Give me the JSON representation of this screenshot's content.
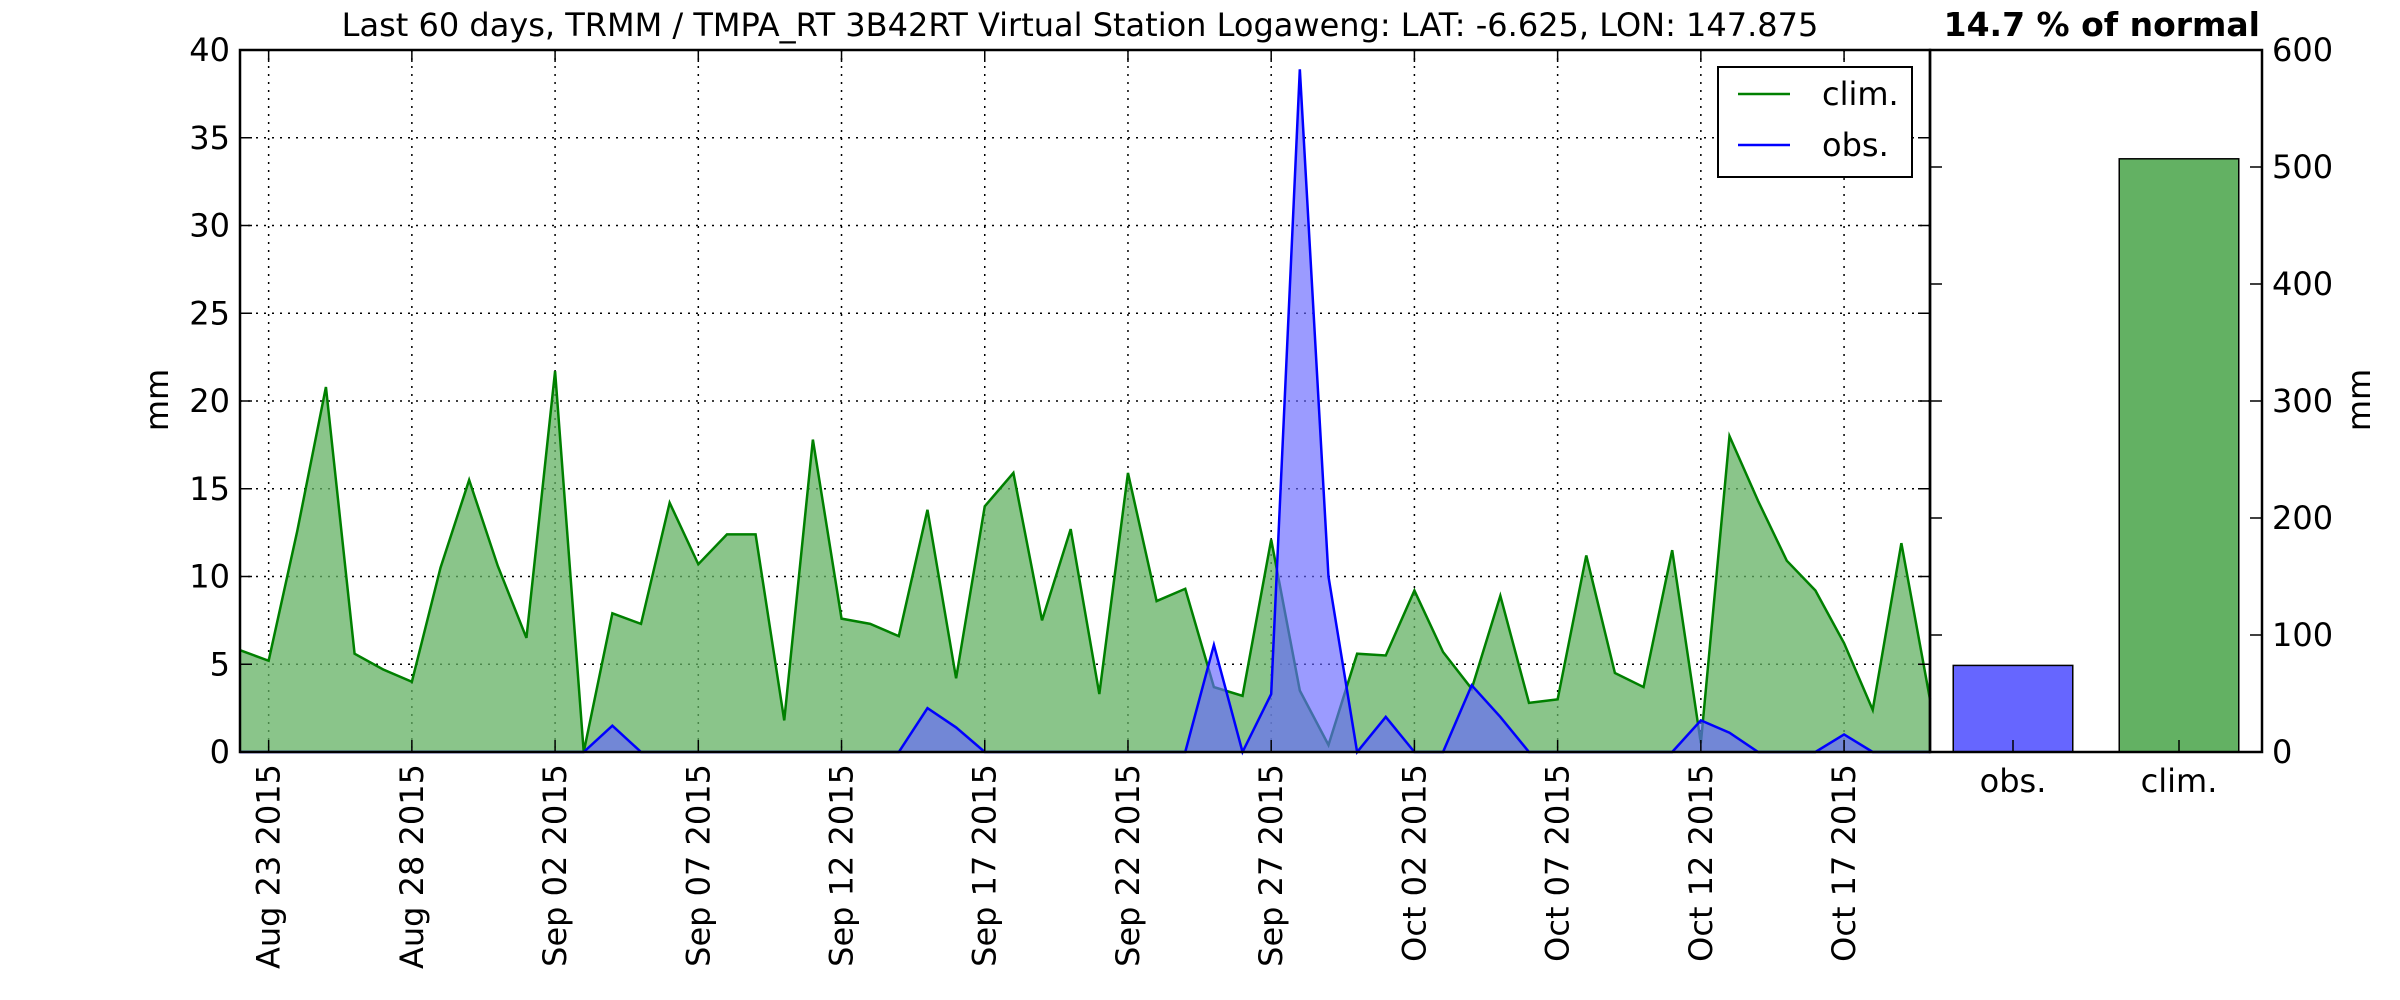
{
  "chart_data": [
    {
      "type": "area",
      "title": "Last 60 days, TRMM / TMPA_RT 3B42RT Virtual Station Logaweng: LAT: -6.625, LON: 147.875",
      "xlabel": "",
      "ylabel": "mm",
      "ylim": [
        0,
        40
      ],
      "yticks": [
        0,
        5,
        10,
        15,
        20,
        25,
        30,
        35,
        40
      ],
      "xlim": [
        "2015-08-22",
        "2015-10-20"
      ],
      "xticks": [
        "2015-08-23",
        "2015-08-28",
        "2015-09-02",
        "2015-09-07",
        "2015-09-12",
        "2015-09-17",
        "2015-09-22",
        "2015-09-27",
        "2015-10-02",
        "2015-10-07",
        "2015-10-12",
        "2015-10-17"
      ],
      "xtick_labels": [
        "Aug 23 2015",
        "Aug 28 2015",
        "Sep 02 2015",
        "Sep 07 2015",
        "Sep 12 2015",
        "Sep 17 2015",
        "Sep 22 2015",
        "Sep 27 2015",
        "Oct 02 2015",
        "Oct 07 2015",
        "Oct 12 2015",
        "Oct 17 2015"
      ],
      "grid": true,
      "legend": "top-right",
      "x": [
        "2015-08-22",
        "2015-08-23",
        "2015-08-24",
        "2015-08-25",
        "2015-08-26",
        "2015-08-27",
        "2015-08-28",
        "2015-08-29",
        "2015-08-30",
        "2015-08-31",
        "2015-09-01",
        "2015-09-02",
        "2015-09-03",
        "2015-09-04",
        "2015-09-05",
        "2015-09-06",
        "2015-09-07",
        "2015-09-08",
        "2015-09-09",
        "2015-09-10",
        "2015-09-11",
        "2015-09-12",
        "2015-09-13",
        "2015-09-14",
        "2015-09-15",
        "2015-09-16",
        "2015-09-17",
        "2015-09-18",
        "2015-09-19",
        "2015-09-20",
        "2015-09-21",
        "2015-09-22",
        "2015-09-23",
        "2015-09-24",
        "2015-09-25",
        "2015-09-26",
        "2015-09-27",
        "2015-09-28",
        "2015-09-29",
        "2015-09-30",
        "2015-10-01",
        "2015-10-02",
        "2015-10-03",
        "2015-10-04",
        "2015-10-05",
        "2015-10-06",
        "2015-10-07",
        "2015-10-08",
        "2015-10-09",
        "2015-10-10",
        "2015-10-11",
        "2015-10-12",
        "2015-10-13",
        "2015-10-14",
        "2015-10-15",
        "2015-10-16",
        "2015-10-17",
        "2015-10-18",
        "2015-10-19",
        "2015-10-20"
      ],
      "series": [
        {
          "name": "clim.",
          "color": "#008000",
          "fill": "#63b163",
          "values": [
            5.8,
            5.2,
            12.6,
            20.8,
            5.6,
            4.7,
            4.0,
            10.5,
            15.5,
            10.6,
            6.5,
            21.7,
            0.0,
            7.9,
            7.3,
            14.2,
            10.7,
            12.4,
            12.4,
            1.8,
            17.8,
            7.6,
            7.3,
            6.6,
            13.8,
            4.2,
            14.0,
            15.9,
            7.5,
            12.7,
            3.3,
            15.9,
            8.6,
            9.3,
            3.7,
            3.2,
            12.1,
            3.5,
            0.4,
            5.6,
            5.5,
            9.2,
            5.7,
            3.6,
            8.9,
            2.8,
            3.0,
            11.2,
            4.5,
            3.7,
            11.5,
            0.5,
            18.0,
            14.3,
            10.9,
            9.2,
            6.2,
            2.4,
            11.9,
            3.0
          ]
        },
        {
          "name": "obs.",
          "color": "#0000ff",
          "fill": "#6666ff",
          "values": [
            0,
            0,
            0,
            0,
            0,
            0,
            0,
            0,
            0,
            0,
            0,
            0,
            0,
            1.5,
            0,
            0,
            0,
            0,
            0,
            0,
            0,
            0,
            0,
            0,
            2.5,
            1.4,
            0,
            0,
            0,
            0,
            0,
            0,
            0,
            0,
            6.1,
            0,
            3.3,
            38.9,
            10.0,
            0,
            2.0,
            0,
            0,
            3.8,
            2.0,
            0,
            0,
            0,
            0,
            0,
            0,
            1.8,
            1.1,
            0,
            0,
            0,
            1.0,
            0,
            0,
            0
          ]
        }
      ]
    },
    {
      "type": "bar",
      "title": "14.7 % of normal",
      "xlabel": "",
      "ylabel": "mm",
      "ylim": [
        0,
        600
      ],
      "yticks": [
        0,
        100,
        200,
        300,
        400,
        500,
        600
      ],
      "categories": [
        "obs.",
        "clim."
      ],
      "values": [
        74,
        507
      ],
      "colors": [
        "#6666ff",
        "#63b163"
      ],
      "grid": false
    }
  ]
}
